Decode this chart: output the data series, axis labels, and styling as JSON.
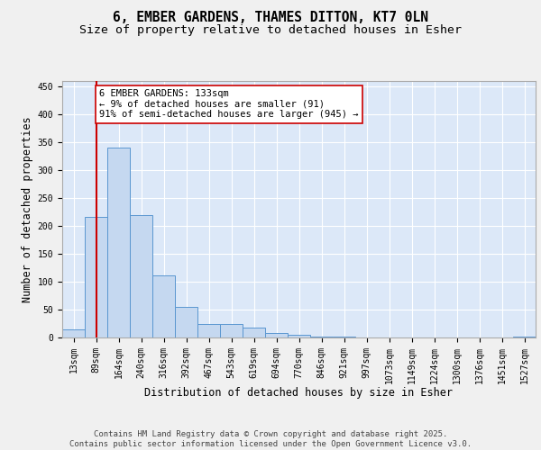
{
  "title_line1": "6, EMBER GARDENS, THAMES DITTON, KT7 0LN",
  "title_line2": "Size of property relative to detached houses in Esher",
  "xlabel": "Distribution of detached houses by size in Esher",
  "ylabel": "Number of detached properties",
  "categories": [
    "13sqm",
    "89sqm",
    "164sqm",
    "240sqm",
    "316sqm",
    "392sqm",
    "467sqm",
    "543sqm",
    "619sqm",
    "694sqm",
    "770sqm",
    "846sqm",
    "921sqm",
    "997sqm",
    "1073sqm",
    "1149sqm",
    "1224sqm",
    "1300sqm",
    "1376sqm",
    "1451sqm",
    "1527sqm"
  ],
  "values": [
    15,
    216,
    340,
    220,
    112,
    55,
    25,
    25,
    17,
    8,
    5,
    2,
    1,
    0,
    0,
    0,
    0,
    0,
    0,
    0,
    2
  ],
  "bar_color": "#c5d8f0",
  "bar_edge_color": "#5a96d0",
  "background_color": "#dce8f8",
  "grid_color": "#ffffff",
  "vline_x": 1,
  "vline_color": "#cc0000",
  "annotation_text": "6 EMBER GARDENS: 133sqm\n← 9% of detached houses are smaller (91)\n91% of semi-detached houses are larger (945) →",
  "annotation_box_color": "#ffffff",
  "annotation_box_edge": "#cc0000",
  "ylim": [
    0,
    460
  ],
  "yticks": [
    0,
    50,
    100,
    150,
    200,
    250,
    300,
    350,
    400,
    450
  ],
  "footer_text": "Contains HM Land Registry data © Crown copyright and database right 2025.\nContains public sector information licensed under the Open Government Licence v3.0.",
  "title_fontsize": 10.5,
  "subtitle_fontsize": 9.5,
  "axis_label_fontsize": 8.5,
  "tick_fontsize": 7,
  "annotation_fontsize": 7.5,
  "footer_fontsize": 6.5,
  "fig_bg": "#f0f0f0"
}
